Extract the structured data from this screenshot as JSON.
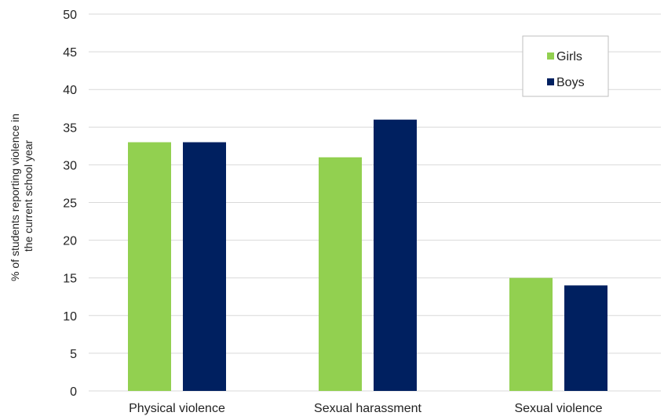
{
  "chart_data": {
    "type": "bar",
    "title": "",
    "xlabel": "",
    "ylabel": "% of students reporting violence in the current school year",
    "ylabel_lines": [
      "% of students reporting violence in",
      "the current school year"
    ],
    "categories": [
      "Physical violence",
      "Sexual harassment",
      "Sexual violence"
    ],
    "series": [
      {
        "name": "Girls",
        "color": "#92d050",
        "values": [
          33,
          31,
          15
        ]
      },
      {
        "name": "Boys",
        "color": "#002060",
        "values": [
          33,
          36,
          14
        ]
      }
    ],
    "ylim": [
      0,
      50
    ],
    "yticks": [
      0,
      5,
      10,
      15,
      20,
      25,
      30,
      35,
      40,
      45,
      50
    ],
    "grid": true,
    "legend_position": "top-right"
  }
}
